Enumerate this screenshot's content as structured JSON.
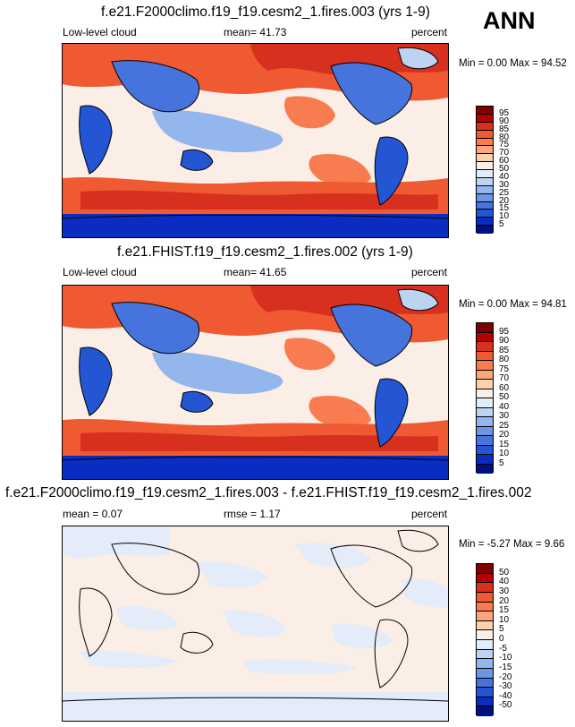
{
  "season": "ANN",
  "panels": [
    {
      "title": "f.e21.F2000climo.f19_f19.cesm2_1.fires.003 (yrs 1-9)",
      "left_label": "Low-level cloud",
      "center_label": "mean=  41.73",
      "right_label": "percent",
      "minmax": "Min =   0.00 Max =  94.52"
    },
    {
      "title": "f.e21.FHIST.f19_f19.cesm2_1.fires.002 (yrs 1-9)",
      "left_label": "Low-level cloud",
      "center_label": "mean=  41.65",
      "right_label": "percent",
      "minmax": "Min =   0.00 Max =  94.81"
    },
    {
      "title": "f.e21.F2000climo.f19_f19.cesm2_1.fires.003 - f.e21.FHIST.f19_f19.cesm2_1.fires.002",
      "left_label": "mean =   0.07",
      "center_label": "rmse =   1.17",
      "right_label": "percent",
      "minmax": "Min =  -5.27 Max =   9.66"
    }
  ],
  "colorbars": {
    "abs": {
      "ticks": [
        "95",
        "90",
        "85",
        "80",
        "75",
        "70",
        "60",
        "50",
        "40",
        "30",
        "25",
        "20",
        "15",
        "10",
        "5"
      ],
      "colors": [
        "#7f0000",
        "#b30000",
        "#d7301f",
        "#ef5a32",
        "#f87c50",
        "#fca67e",
        "#fdd0b0",
        "#fbeee6",
        "#e3ecf8",
        "#bdd3f2",
        "#93b6ec",
        "#6c95e2",
        "#4673dc",
        "#2456d3",
        "#0a2cc0",
        "#001080"
      ]
    },
    "diff": {
      "ticks": [
        "50",
        "40",
        "30",
        "20",
        "15",
        "10",
        "5",
        "0",
        "-5",
        "-10",
        "-15",
        "-20",
        "-30",
        "-40",
        "-50"
      ],
      "colors": [
        "#7f0000",
        "#b30000",
        "#d7301f",
        "#ef5a32",
        "#f87c50",
        "#fca67e",
        "#fdd0b0",
        "#fbeee6",
        "#e3ecf8",
        "#bdd3f2",
        "#93b6ec",
        "#6c95e2",
        "#4673dc",
        "#2456d3",
        "#0a2cc0",
        "#001080"
      ]
    }
  },
  "chart_data": [
    {
      "type": "heatmap",
      "title": "f.e21.F2000climo.f19_f19.cesm2_1.fires.003 (yrs 1-9)",
      "variable": "Low-level cloud",
      "units": "percent",
      "mean": 41.73,
      "min": 0.0,
      "max": 94.52,
      "levels": [
        5,
        10,
        15,
        20,
        25,
        30,
        40,
        50,
        60,
        70,
        75,
        80,
        85,
        90,
        95
      ]
    },
    {
      "type": "heatmap",
      "title": "f.e21.FHIST.f19_f19.cesm2_1.fires.002 (yrs 1-9)",
      "variable": "Low-level cloud",
      "units": "percent",
      "mean": 41.65,
      "min": 0.0,
      "max": 94.81,
      "levels": [
        5,
        10,
        15,
        20,
        25,
        30,
        40,
        50,
        60,
        70,
        75,
        80,
        85,
        90,
        95
      ]
    },
    {
      "type": "heatmap",
      "title": "f.e21.F2000climo.f19_f19.cesm2_1.fires.003 - f.e21.FHIST.f19_f19.cesm2_1.fires.002",
      "units": "percent",
      "mean": 0.07,
      "rmse": 1.17,
      "min": -5.27,
      "max": 9.66,
      "levels": [
        -50,
        -40,
        -30,
        -20,
        -15,
        -10,
        -5,
        0,
        5,
        10,
        15,
        20,
        30,
        40,
        50
      ]
    }
  ]
}
